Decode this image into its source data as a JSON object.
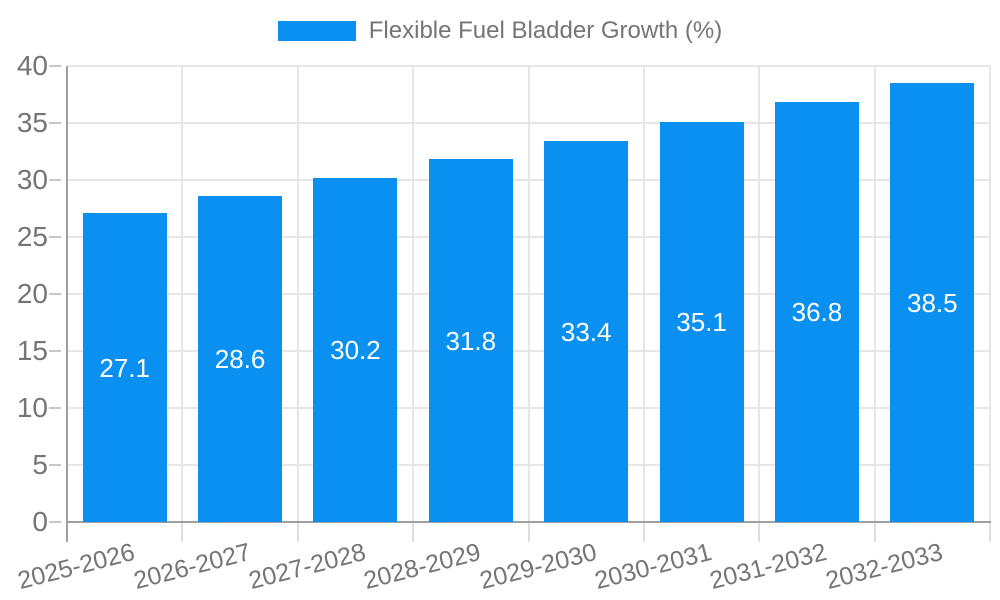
{
  "chart_data": {
    "type": "bar",
    "title": "Flexible Fuel Bladder Growth (%)",
    "legend": [
      "Flexible Fuel Bladder Growth (%)"
    ],
    "legend_position": "top-center",
    "categories": [
      "2025-2026",
      "2026-2027",
      "2027-2028",
      "2028-2029",
      "2029-2030",
      "2030-2031",
      "2031-2032",
      "2032-2033"
    ],
    "values": [
      27.1,
      28.6,
      30.2,
      31.8,
      33.4,
      35.1,
      36.8,
      38.5
    ],
    "bar_labels": [
      27.1,
      28.6,
      30.2,
      31.8,
      33.4,
      35.1,
      36.8,
      38.5
    ],
    "xlabel": "",
    "ylabel": "",
    "ylim": [
      0,
      40
    ],
    "yticks": [
      0,
      5,
      10,
      15,
      20,
      25,
      30,
      35,
      40
    ],
    "grid": true,
    "x_label_rotation_deg": -14.5
  },
  "colors": {
    "bar": "#0a90f0",
    "bar_label": "#ffffff",
    "grid": "#e6e6e6",
    "axis": "#a0a0a0",
    "tick": "#c8c8c8",
    "stub": "#dedede",
    "text": "#757575",
    "background": "#ffffff"
  }
}
